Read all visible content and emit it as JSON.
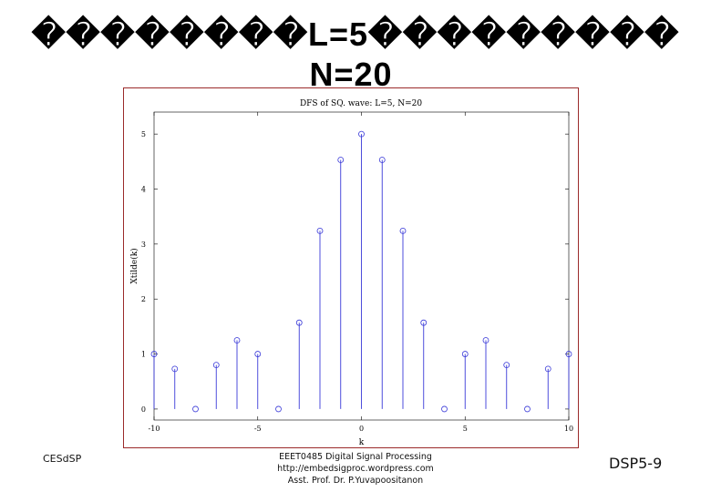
{
  "slide": {
    "title_line1": "��������L=5���������",
    "title_line2": "N=20"
  },
  "footer": {
    "left": "CESdSP",
    "center_lines": [
      "EEET0485 Digital Signal Processing",
      "http://embedsigproc.wordpress.com",
      "Asst. Prof. Dr. P.Yuvapoositanon"
    ],
    "right": "DSP5-9"
  },
  "colors": {
    "stem": "#3a3ad8",
    "frame": "#9b2a2a",
    "axes": "#000000"
  },
  "chart_data": {
    "type": "stem",
    "title": "DFS of SQ. wave: L=5, N=20",
    "xlabel": "k",
    "ylabel": "Xtilde(k)",
    "xlim": [
      -10,
      10
    ],
    "ylim": [
      -0.2,
      5.4
    ],
    "xticks": [
      -10,
      -5,
      0,
      5,
      10
    ],
    "yticks": [
      0,
      1,
      2,
      3,
      4,
      5
    ],
    "grid": false,
    "x": [
      -10,
      -9,
      -8,
      -7,
      -6,
      -5,
      -4,
      -3,
      -2,
      -1,
      0,
      1,
      2,
      3,
      4,
      5,
      6,
      7,
      8,
      9,
      10
    ],
    "values": [
      1.0,
      0.73,
      0.0,
      0.8,
      1.25,
      1.0,
      0.0,
      1.57,
      3.24,
      4.53,
      5.0,
      4.53,
      3.24,
      1.57,
      0.0,
      1.0,
      1.25,
      0.8,
      0.0,
      0.73,
      1.0
    ]
  }
}
